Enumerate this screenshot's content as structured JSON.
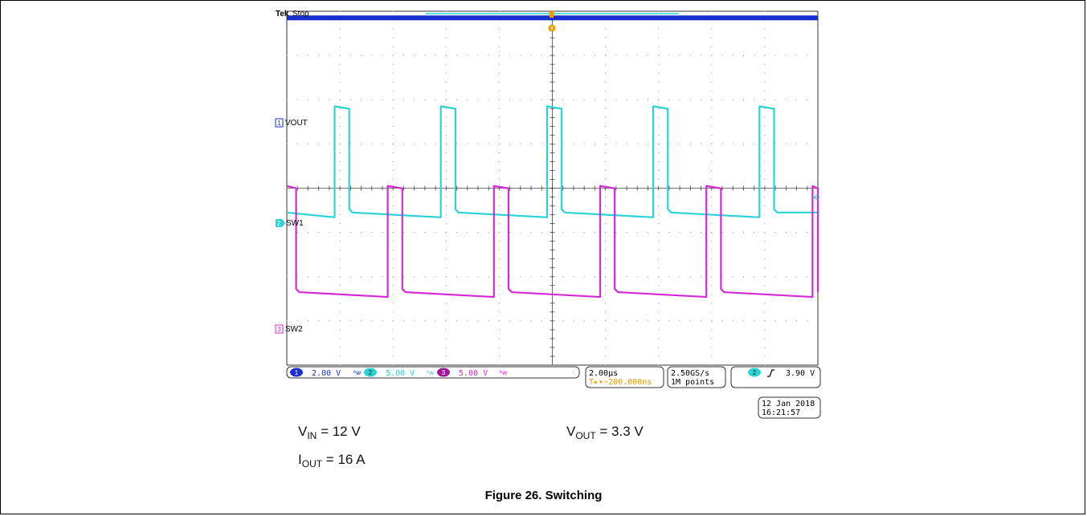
{
  "header": {
    "brand": "Tek",
    "state": "Stop",
    "trigger_marker": "T"
  },
  "channels": [
    {
      "id": "1",
      "label": "VOUT",
      "scale": "2.00 V",
      "color": "#1a2fcf"
    },
    {
      "id": "2",
      "label": "SW1",
      "scale": "5.00 V",
      "color": "#2ad4d4"
    },
    {
      "id": "3",
      "label": "SW2",
      "scale": "5.00 V",
      "color": "#d42ad4"
    }
  ],
  "status": {
    "timebase": "2.00µs",
    "trigger_delay": "T▸▾−200.000ns",
    "sample_rate": "2.50GS/s",
    "record_length": "1M points",
    "trigger_channel": "2",
    "trigger_level": "3.90 V",
    "date": "12 Jan  2018",
    "time": "16:21:57"
  },
  "annotations": {
    "vin_sym": "V",
    "vin_sub": "IN",
    "vin_val": " = 12 V",
    "vout_sym": "V",
    "vout_sub": "OUT",
    "vout_val": " = 3.3 V",
    "iout_sym": "I",
    "iout_sub": "OUT",
    "iout_val": " = 16 A"
  },
  "caption": "Figure 26. Switching",
  "chart_data": {
    "type": "line",
    "x_unit": "µs",
    "x_div": 2.0,
    "x_range": [
      -10,
      10
    ],
    "series": [
      {
        "name": "VOUT",
        "channel": 1,
        "volts_per_div": 2.0,
        "offset_div": 2.2,
        "waveform": "dc",
        "level_v": 3.3
      },
      {
        "name": "SW1",
        "channel": 2,
        "volts_per_div": 5.0,
        "offset_div": -0.55,
        "waveform": "square",
        "high_v": 12,
        "low_v": 0,
        "period_us": 4.0,
        "rise_us": -8.2,
        "fall_us": -7.65
      },
      {
        "name": "SW2",
        "channel": 3,
        "volts_per_div": 5.0,
        "offset_div": -2.35,
        "waveform": "square",
        "high_v": 12,
        "low_v": 0,
        "period_us": 4.0,
        "rise_us": -6.2,
        "fall_us": -5.65
      }
    ]
  }
}
